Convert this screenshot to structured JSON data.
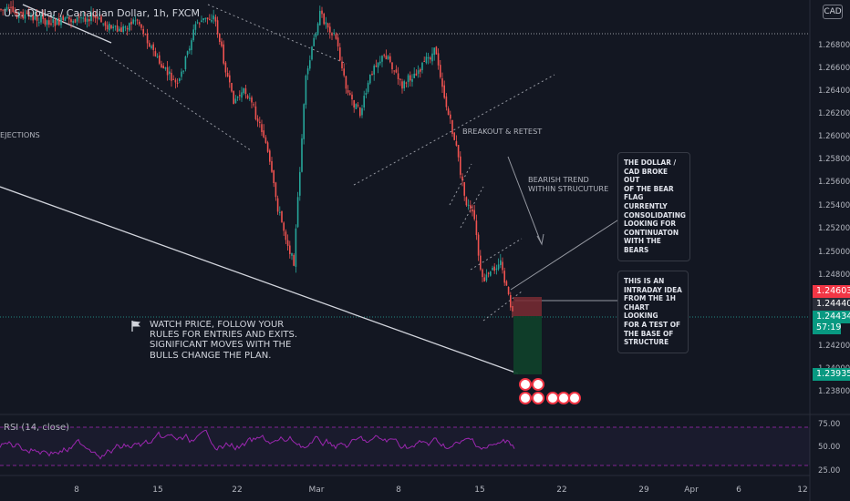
{
  "header": {
    "symbol_title": "U.S. Dollar / Canadian Dollar, 1h, FXCM",
    "currency_badge": "CAD"
  },
  "price_axis": {
    "ticks": [
      "1.26800",
      "1.26600",
      "1.26400",
      "1.26200",
      "1.26000",
      "1.25800",
      "1.25600",
      "1.25400",
      "1.25200",
      "1.25000",
      "1.24800",
      "1.24200",
      "1.24000",
      "1.23800"
    ]
  },
  "price_tags": [
    {
      "label": "1.24603",
      "color": "#f23645"
    },
    {
      "label": "1.24440",
      "color": "#2a2e39"
    },
    {
      "label": "1.24434",
      "color": "#089981"
    },
    {
      "label": "57:19",
      "color": "#089981"
    },
    {
      "label": "1.23935",
      "color": "#089981"
    }
  ],
  "rsi": {
    "label": "RSI (14, close)",
    "ticks": [
      "75.00",
      "50.00",
      "25.00"
    ],
    "line_color": "#9c27b0"
  },
  "time_axis": {
    "ticks": [
      "8",
      "15",
      "22",
      "Mar",
      "8",
      "15",
      "22",
      "29",
      "Apr",
      "6",
      "12"
    ]
  },
  "annotations": {
    "left_cut_label": "EJECTIONS",
    "breakout": "BREAKOUT & RETEST",
    "trend": "BEARISH TREND\nWITHIN STRUCUTURE",
    "note_bear_flag": "THE DOLLAR /\nCAD BROKE OUT\nOF THE BEAR\nFLAG CURRENTLY\nCONSOLIDATING\nLOOKING FOR\nCONTINUATON\nWITH THE BEARS",
    "note_intraday": "THIS IS AN\nINTRADAY IDEA\nFROM THE 1H\nCHART LOOKING\nFOR A TEST OF\nTHE BASE OF\nSTRUCTURE",
    "watch_text": "WATCH PRICE, FOLLOW YOUR\nRULES FOR ENTRIES AND EXITS.\nSIGNIFICANT MOVES WITH THE\nBULLS CHANGE THE PLAN."
  },
  "colors": {
    "up": "#26a69a",
    "down": "#ef5350",
    "stop_zone": "#7a2b33",
    "target_zone": "#0f3f2a"
  }
}
